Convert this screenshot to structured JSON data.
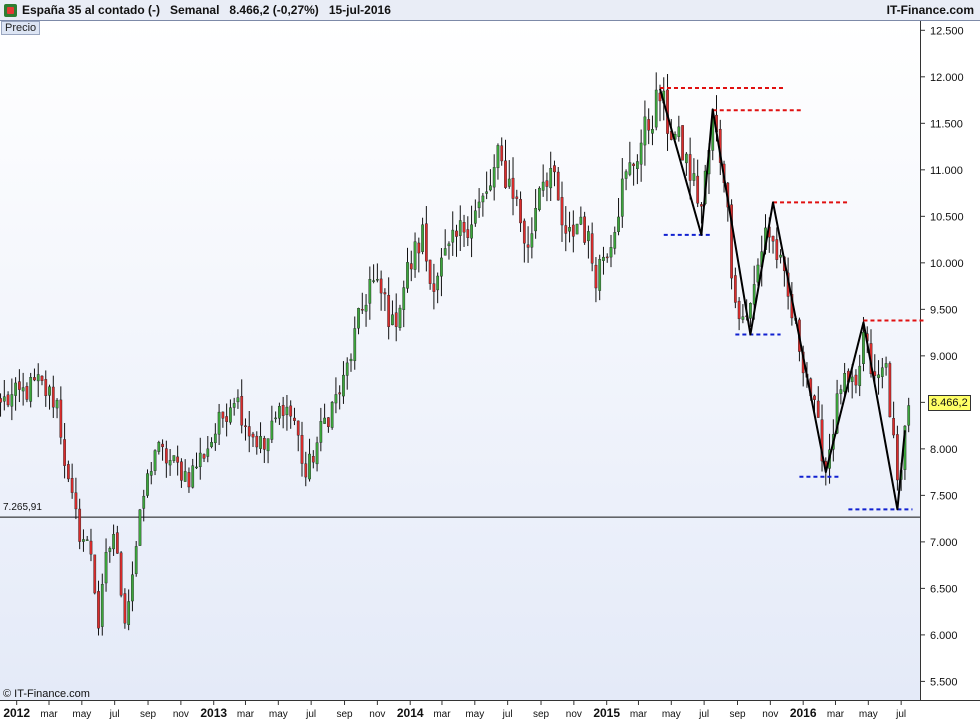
{
  "header": {
    "instrument": "España 35 al contado (-)",
    "period": "Semanal",
    "quote": "8.466,2 (-0,27%)",
    "date": "15-jul-2016",
    "site": "IT-Finance.com"
  },
  "pane_label": "Precio",
  "copyright": "© IT-Finance.com",
  "reference_line": {
    "value": 7265.91,
    "label": "7.265,91"
  },
  "last_price": {
    "value": 8466.2,
    "label": "8.466,2"
  },
  "colors": {
    "background_top": "#ffffff",
    "background_bottom": "#e4eaf8",
    "up_candle": "#3ca53c",
    "down_candle": "#d92c2c",
    "wick": "#111111",
    "support": "#1020d0",
    "resistance": "#e01010",
    "zigzag": "#000000",
    "last_price_box": "#ffff66"
  },
  "chart_data": {
    "type": "candlestick",
    "title": "",
    "xlabel": "",
    "ylabel": "",
    "y_axis_side": "right",
    "ylim": [
      5300,
      12600
    ],
    "y_ticks": [
      5500,
      6000,
      6500,
      7000,
      7500,
      8000,
      8500,
      9000,
      9500,
      10000,
      10500,
      11000,
      11500,
      12000,
      12500
    ],
    "y_tick_labels": [
      "5.500",
      "6.000",
      "6.500",
      "7.000",
      "7.500",
      "8.000",
      "8.500",
      "9.000",
      "9.500",
      "10.000",
      "10.500",
      "11.000",
      "11.500",
      "12.000",
      "12.500"
    ],
    "x_ticks": [
      {
        "label": "2012",
        "date": "2012-01-01",
        "bold": true
      },
      {
        "label": "mar",
        "date": "2012-03-01",
        "bold": false
      },
      {
        "label": "may",
        "date": "2012-05-01",
        "bold": false
      },
      {
        "label": "jul",
        "date": "2012-07-01",
        "bold": false
      },
      {
        "label": "sep",
        "date": "2012-09-01",
        "bold": false
      },
      {
        "label": "nov",
        "date": "2012-11-01",
        "bold": false
      },
      {
        "label": "2013",
        "date": "2013-01-01",
        "bold": true
      },
      {
        "label": "mar",
        "date": "2013-03-01",
        "bold": false
      },
      {
        "label": "may",
        "date": "2013-05-01",
        "bold": false
      },
      {
        "label": "jul",
        "date": "2013-07-01",
        "bold": false
      },
      {
        "label": "sep",
        "date": "2013-09-01",
        "bold": false
      },
      {
        "label": "nov",
        "date": "2013-11-01",
        "bold": false
      },
      {
        "label": "2014",
        "date": "2014-01-01",
        "bold": true
      },
      {
        "label": "mar",
        "date": "2014-03-01",
        "bold": false
      },
      {
        "label": "may",
        "date": "2014-05-01",
        "bold": false
      },
      {
        "label": "jul",
        "date": "2014-07-01",
        "bold": false
      },
      {
        "label": "sep",
        "date": "2014-09-01",
        "bold": false
      },
      {
        "label": "nov",
        "date": "2014-11-01",
        "bold": false
      },
      {
        "label": "2015",
        "date": "2015-01-01",
        "bold": true
      },
      {
        "label": "mar",
        "date": "2015-03-01",
        "bold": false
      },
      {
        "label": "may",
        "date": "2015-05-01",
        "bold": false
      },
      {
        "label": "jul",
        "date": "2015-07-01",
        "bold": false
      },
      {
        "label": "sep",
        "date": "2015-09-01",
        "bold": false
      },
      {
        "label": "nov",
        "date": "2015-11-01",
        "bold": false
      },
      {
        "label": "2016",
        "date": "2016-01-01",
        "bold": true
      },
      {
        "label": "mar",
        "date": "2016-03-01",
        "bold": false
      },
      {
        "label": "may",
        "date": "2016-05-01",
        "bold": false
      },
      {
        "label": "jul",
        "date": "2016-07-01",
        "bold": false
      }
    ],
    "xlim": [
      "2011-12-01",
      "2016-08-05"
    ],
    "weekly_close_anchors": [
      {
        "date": "2011-12-02",
        "close": 8500
      },
      {
        "date": "2011-12-30",
        "close": 8560
      },
      {
        "date": "2012-02-10",
        "close": 8700
      },
      {
        "date": "2012-03-16",
        "close": 8500
      },
      {
        "date": "2012-04-06",
        "close": 7600
      },
      {
        "date": "2012-04-27",
        "close": 7100
      },
      {
        "date": "2012-05-18",
        "close": 6900
      },
      {
        "date": "2012-06-01",
        "close": 6100
      },
      {
        "date": "2012-06-15",
        "close": 6800
      },
      {
        "date": "2012-06-29",
        "close": 7100
      },
      {
        "date": "2012-07-20",
        "close": 6200
      },
      {
        "date": "2012-07-27",
        "close": 6400
      },
      {
        "date": "2012-08-24",
        "close": 7500
      },
      {
        "date": "2012-09-14",
        "close": 8000
      },
      {
        "date": "2012-10-05",
        "close": 7900
      },
      {
        "date": "2012-11-16",
        "close": 7700
      },
      {
        "date": "2012-12-28",
        "close": 8100
      },
      {
        "date": "2013-02-08",
        "close": 8600
      },
      {
        "date": "2013-03-08",
        "close": 8200
      },
      {
        "date": "2013-04-05",
        "close": 8000
      },
      {
        "date": "2013-05-10",
        "close": 8500
      },
      {
        "date": "2013-05-31",
        "close": 8300
      },
      {
        "date": "2013-06-21",
        "close": 7700
      },
      {
        "date": "2013-07-26",
        "close": 8300
      },
      {
        "date": "2013-08-30",
        "close": 8700
      },
      {
        "date": "2013-09-20",
        "close": 9200
      },
      {
        "date": "2013-10-18",
        "close": 9800
      },
      {
        "date": "2013-11-15",
        "close": 9600
      },
      {
        "date": "2013-11-29",
        "close": 9300
      },
      {
        "date": "2013-12-27",
        "close": 9900
      },
      {
        "date": "2014-01-24",
        "close": 10300
      },
      {
        "date": "2014-02-07",
        "close": 9800
      },
      {
        "date": "2014-03-14",
        "close": 10100
      },
      {
        "date": "2014-04-11",
        "close": 10400
      },
      {
        "date": "2014-05-23",
        "close": 10700
      },
      {
        "date": "2014-06-13",
        "close": 11100
      },
      {
        "date": "2014-07-11",
        "close": 10800
      },
      {
        "date": "2014-08-08",
        "close": 10100
      },
      {
        "date": "2014-08-29",
        "close": 10900
      },
      {
        "date": "2014-09-19",
        "close": 11000
      },
      {
        "date": "2014-10-17",
        "close": 10200
      },
      {
        "date": "2014-11-14",
        "close": 10500
      },
      {
        "date": "2014-12-12",
        "close": 9900
      },
      {
        "date": "2015-01-09",
        "close": 10300
      },
      {
        "date": "2015-01-30",
        "close": 10800
      },
      {
        "date": "2015-03-06",
        "close": 11300
      },
      {
        "date": "2015-04-10",
        "close": 11800
      },
      {
        "date": "2015-04-24",
        "close": 11500
      },
      {
        "date": "2015-05-22",
        "close": 11200
      },
      {
        "date": "2015-06-26",
        "close": 10600
      },
      {
        "date": "2015-07-17",
        "close": 11500
      },
      {
        "date": "2015-08-07",
        "close": 11000
      },
      {
        "date": "2015-08-21",
        "close": 10000
      },
      {
        "date": "2015-09-04",
        "close": 9400
      },
      {
        "date": "2015-09-25",
        "close": 9500
      },
      {
        "date": "2015-10-23",
        "close": 10400
      },
      {
        "date": "2015-11-13",
        "close": 10100
      },
      {
        "date": "2015-12-04",
        "close": 9600
      },
      {
        "date": "2016-01-08",
        "close": 8800
      },
      {
        "date": "2016-02-05",
        "close": 8000
      },
      {
        "date": "2016-02-12",
        "close": 7800
      },
      {
        "date": "2016-03-11",
        "close": 8700
      },
      {
        "date": "2016-04-08",
        "close": 8600
      },
      {
        "date": "2016-04-22",
        "close": 9200
      },
      {
        "date": "2016-05-13",
        "close": 8700
      },
      {
        "date": "2016-06-03",
        "close": 8900
      },
      {
        "date": "2016-06-24",
        "close": 7600
      },
      {
        "date": "2016-07-08",
        "close": 8200
      },
      {
        "date": "2016-07-15",
        "close": 8466.2
      }
    ],
    "zigzag": [
      {
        "date": "2015-04-10",
        "value": 11870
      },
      {
        "date": "2015-06-26",
        "value": 10300
      },
      {
        "date": "2015-07-17",
        "value": 11650
      },
      {
        "date": "2015-09-25",
        "value": 9230
      },
      {
        "date": "2015-11-06",
        "value": 10650
      },
      {
        "date": "2016-02-12",
        "value": 7750
      },
      {
        "date": "2016-04-22",
        "value": 9360
      },
      {
        "date": "2016-06-24",
        "value": 7350
      },
      {
        "date": "2016-07-08",
        "value": 8200
      }
    ],
    "resistance_levels": [
      {
        "from": "2015-04-10",
        "to": "2015-11-27",
        "value": 11880
      },
      {
        "from": "2015-07-17",
        "to": "2016-01-01",
        "value": 11640
      },
      {
        "from": "2015-11-06",
        "to": "2016-03-25",
        "value": 10650
      },
      {
        "from": "2016-04-22",
        "to": "2016-08-12",
        "value": 9380
      }
    ],
    "support_levels": [
      {
        "from": "2015-04-17",
        "to": "2015-07-17",
        "value": 10300
      },
      {
        "from": "2015-08-28",
        "to": "2015-11-20",
        "value": 9230
      },
      {
        "from": "2015-12-25",
        "to": "2016-03-11",
        "value": 7700
      },
      {
        "from": "2016-03-25",
        "to": "2016-07-22",
        "value": 7350
      }
    ]
  }
}
